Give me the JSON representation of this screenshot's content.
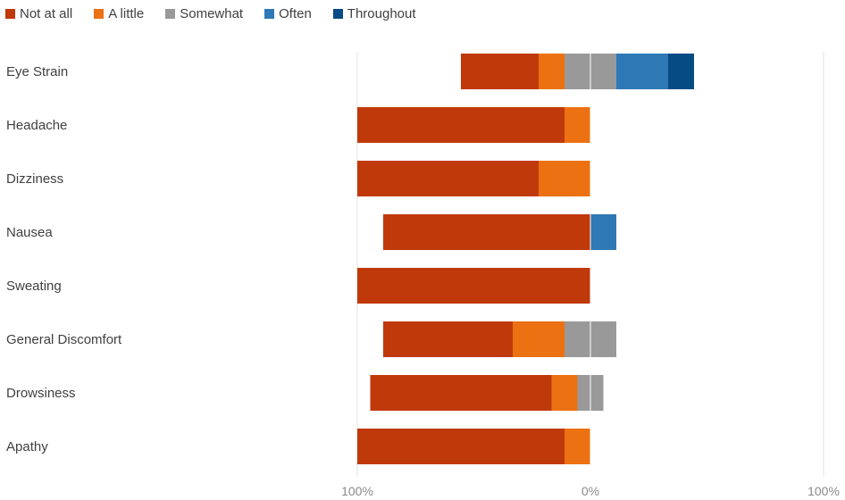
{
  "chart_data": {
    "type": "bar",
    "orientation": "horizontal",
    "stacking": "diverging",
    "categories": [
      "Eye Strain",
      "Headache",
      "Dizziness",
      "Nausea",
      "Sweating",
      "General Discomfort",
      "Drowsiness",
      "Apathy"
    ],
    "series": [
      {
        "name": "Not at all",
        "color": "#c0390a",
        "values": [
          30,
          80,
          70,
          80,
          90,
          50,
          70,
          80
        ]
      },
      {
        "name": "A little",
        "color": "#ec7112",
        "values": [
          10,
          10,
          20,
          0,
          0,
          20,
          10,
          10
        ]
      },
      {
        "name": "Somewhat",
        "color": "#999999",
        "values": [
          20,
          0,
          0,
          0,
          0,
          20,
          10,
          0
        ]
      },
      {
        "name": "Often",
        "color": "#2e78b5",
        "values": [
          20,
          0,
          0,
          10,
          0,
          0,
          0,
          0
        ]
      },
      {
        "name": "Throughout",
        "color": "#074b85",
        "values": [
          10,
          0,
          0,
          0,
          0,
          0,
          0,
          0
        ]
      }
    ],
    "negative_side": [
      "Not at all",
      "A little"
    ],
    "neutral_split": "Somewhat",
    "xlim": [
      -90,
      90
    ],
    "xticks": [
      {
        "value": -90,
        "label": "100%"
      },
      {
        "value": 0,
        "label": "0%"
      },
      {
        "value": 90,
        "label": "100%"
      }
    ],
    "legend_position": "top-left",
    "grid": "vertical"
  }
}
